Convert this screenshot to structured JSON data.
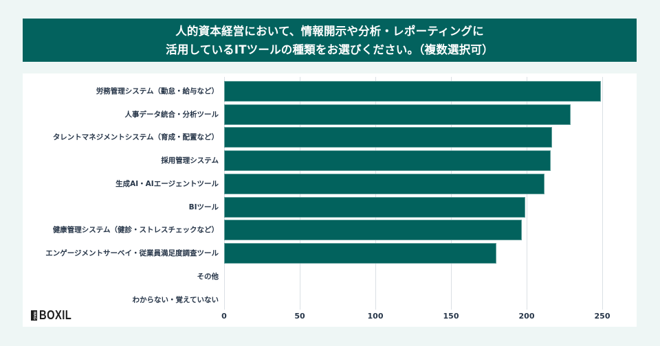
{
  "header": {
    "title_line1": "人的資本経営において、情報開示や分析・レポーティングに",
    "title_line2": "活用しているITツールの種類をお選びください。（複数選択可）"
  },
  "logo": {
    "badge": "MAG",
    "text": "BOXIL"
  },
  "colors": {
    "bar": "#02625d",
    "banner": "#03625e",
    "background": "#eef6f5",
    "text": "#263548",
    "grid": "#dadfe4"
  },
  "chart_data": {
    "type": "bar",
    "orientation": "horizontal",
    "title": "人的資本経営において、情報開示や分析・レポーティングに活用しているITツールの種類をお選びください。（複数選択可）",
    "categories": [
      "労務管理システム（勤怠・給与など）",
      "人事データ統合・分析ツール",
      "タレントマネジメントシステム（育成・配置など）",
      "採用管理システム",
      "生成AI・AIエージェントツール",
      "BIツール",
      "健康管理システム（健診・ストレスチェックなど）",
      "エンゲージメントサーベイ・従業員満足度調査ツール",
      "その他",
      "わからない・覚えていない"
    ],
    "values": [
      249,
      229,
      217,
      216,
      212,
      199,
      197,
      180,
      0,
      0
    ],
    "xticks": [
      "0",
      "50",
      "100",
      "150",
      "200",
      "250"
    ],
    "xlim": [
      0,
      260
    ],
    "xlabel": "",
    "ylabel": "",
    "grid": "vertical",
    "legend": null
  }
}
